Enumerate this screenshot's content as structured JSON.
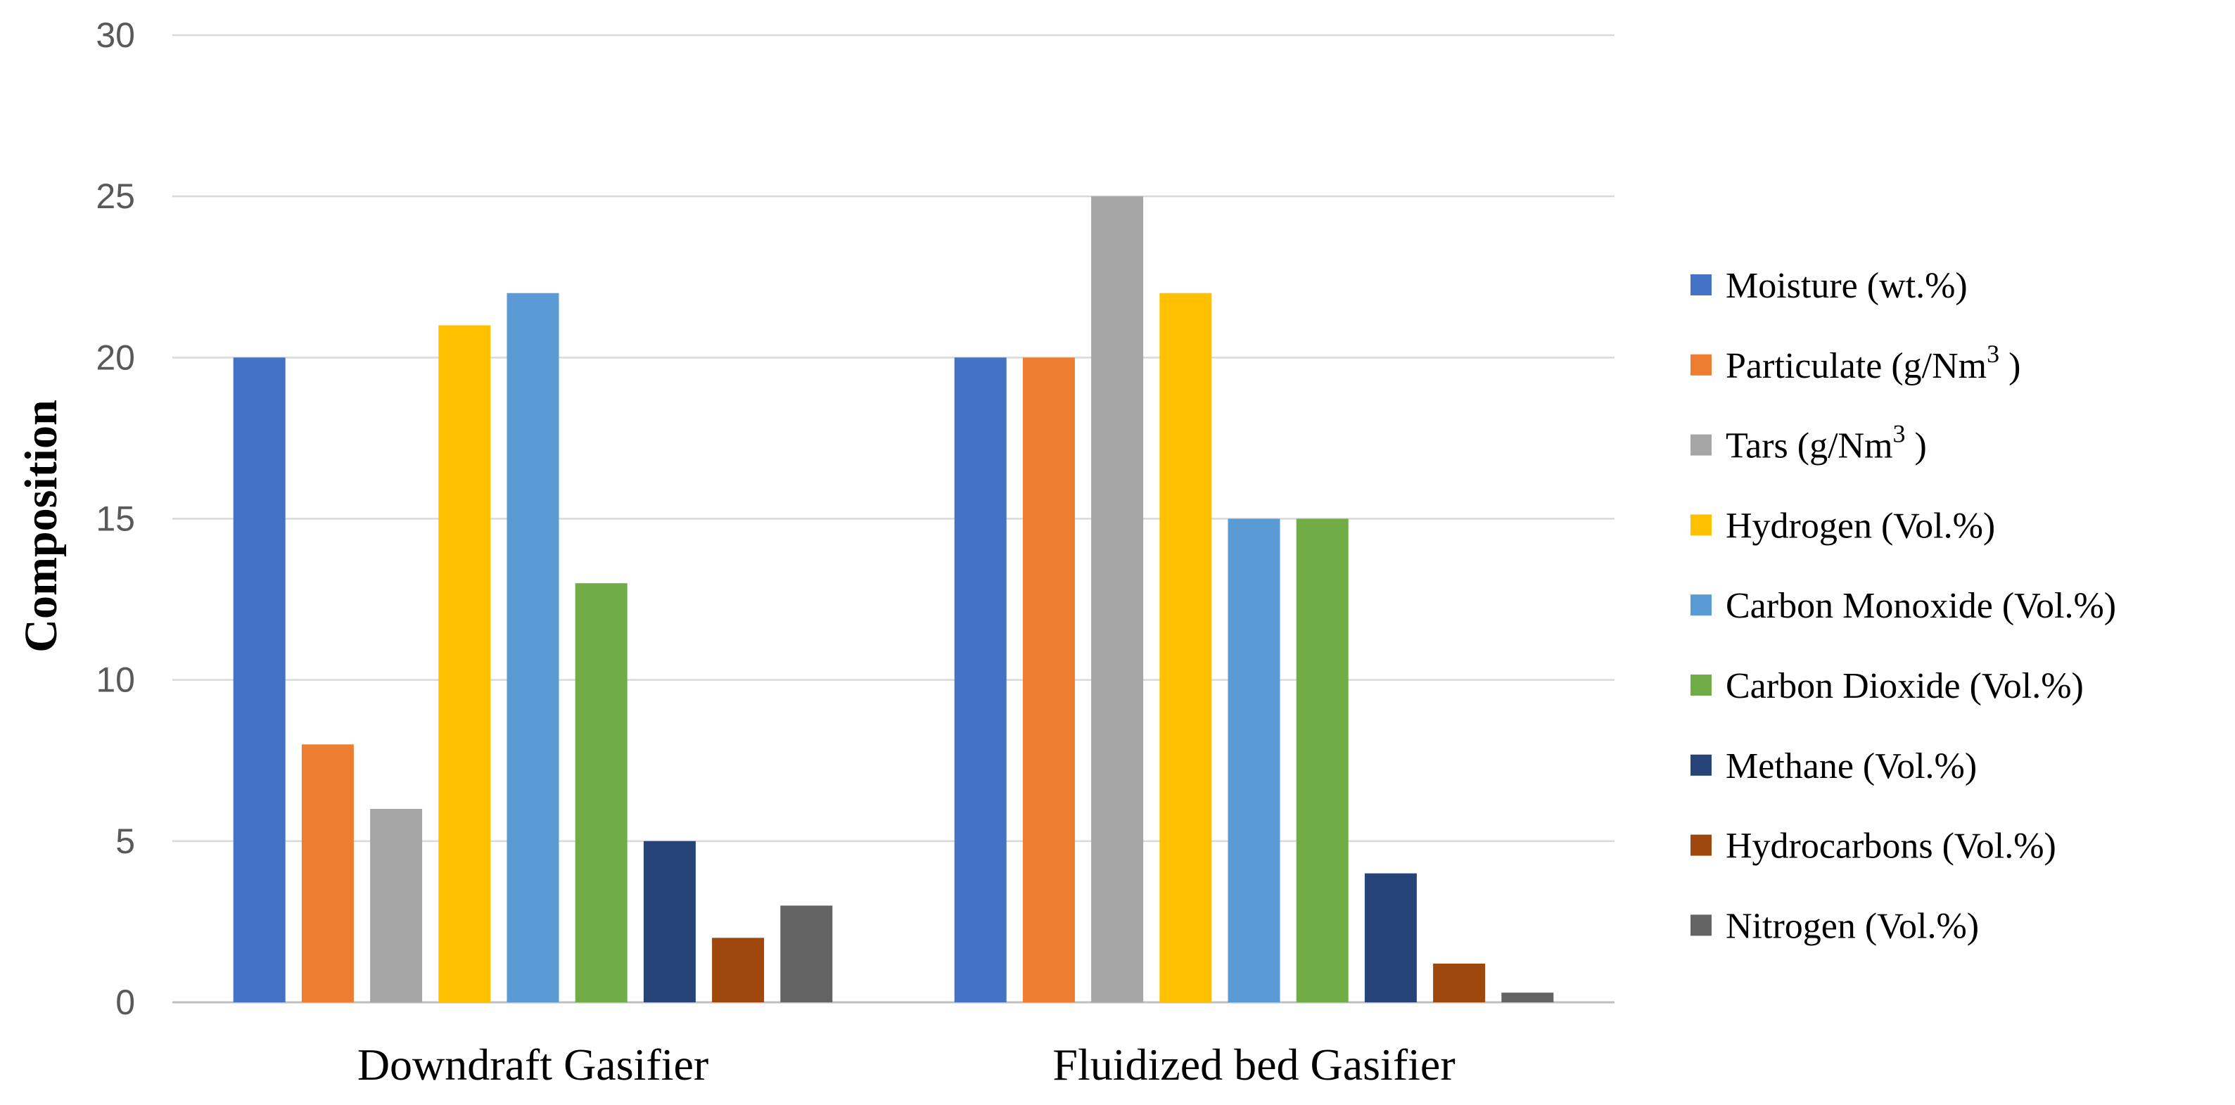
{
  "chart_data": {
    "type": "bar",
    "title": "",
    "xlabel": "",
    "ylabel": "Composition",
    "ylim": [
      0,
      30
    ],
    "yticks": [
      0,
      5,
      10,
      15,
      20,
      25,
      30
    ],
    "grid": true,
    "legend_position": "right",
    "categories": [
      "Downdraft Gasifier",
      "Fluidized bed Gasifier"
    ],
    "series": [
      {
        "name": "Moisture (wt.%)",
        "color": "#4472C4",
        "values": [
          20,
          20
        ]
      },
      {
        "name": "Particulate (g/Nm3 )",
        "name_base": "Particulate (g/Nm",
        "name_sup": "3",
        "name_tail": " )",
        "color": "#ED7D31",
        "values": [
          8,
          20
        ]
      },
      {
        "name": "Tars (g/Nm3 )",
        "name_base": "Tars (g/Nm",
        "name_sup": "3",
        "name_tail": " )",
        "color": "#A5A5A5",
        "values": [
          6,
          25
        ]
      },
      {
        "name": "Hydrogen (Vol.%)",
        "color": "#FFC000",
        "values": [
          21,
          22
        ]
      },
      {
        "name": "Carbon Monoxide  (Vol.%)",
        "color": "#5B9BD5",
        "values": [
          22,
          15
        ]
      },
      {
        "name": "Carbon Dioxide  (Vol.%)",
        "color": "#70AD47",
        "values": [
          13,
          15
        ]
      },
      {
        "name": "Methane  (Vol.%)",
        "color": "#264478",
        "values": [
          5,
          4
        ]
      },
      {
        "name": "Hydrocarbons  (Vol.%)",
        "color": "#9E480E",
        "values": [
          2,
          1.2
        ]
      },
      {
        "name": "Nitrogen  (Vol.%)",
        "color": "#636363",
        "values": [
          3,
          0.3
        ]
      }
    ]
  }
}
